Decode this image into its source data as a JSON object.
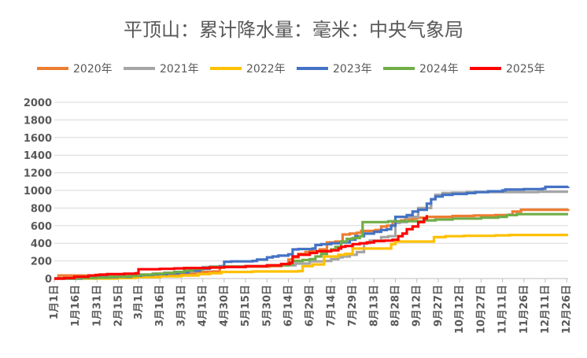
{
  "chart_data": {
    "type": "line",
    "title": "平顶山：累计降水量：毫米：中央气象局",
    "xlabel": "",
    "ylabel": "",
    "ylim": [
      0,
      2000
    ],
    "xlim": [
      1,
      361
    ],
    "yticks": [
      0,
      200,
      400,
      600,
      800,
      1000,
      1200,
      1400,
      1600,
      1800,
      2000
    ],
    "x_ticks": [
      {
        "label": "1月1日",
        "day": 1
      },
      {
        "label": "1月16日",
        "day": 16
      },
      {
        "label": "1月31日",
        "day": 31
      },
      {
        "label": "2月15日",
        "day": 46
      },
      {
        "label": "3月1日",
        "day": 60
      },
      {
        "label": "3月16日",
        "day": 75
      },
      {
        "label": "3月31日",
        "day": 90
      },
      {
        "label": "4月15日",
        "day": 105
      },
      {
        "label": "4月30日",
        "day": 120
      },
      {
        "label": "5月15日",
        "day": 135
      },
      {
        "label": "5月30日",
        "day": 150
      },
      {
        "label": "6月14日",
        "day": 165
      },
      {
        "label": "6月29日",
        "day": 180
      },
      {
        "label": "7月14日",
        "day": 195
      },
      {
        "label": "7月29日",
        "day": 210
      },
      {
        "label": "8月13日",
        "day": 225
      },
      {
        "label": "8月28日",
        "day": 240
      },
      {
        "label": "9月12日",
        "day": 255
      },
      {
        "label": "9月27日",
        "day": 270
      },
      {
        "label": "10月12日",
        "day": 285
      },
      {
        "label": "10月27日",
        "day": 300
      },
      {
        "label": "11月11日",
        "day": 315
      },
      {
        "label": "11月26日",
        "day": 330
      },
      {
        "label": "12月11日",
        "day": 345
      },
      {
        "label": "12月26日",
        "day": 360
      }
    ],
    "grid": true,
    "legend_position": "top",
    "series": [
      {
        "name": "2020年",
        "color": "#ED7D31",
        "points": [
          [
            1,
            0
          ],
          [
            4,
            35
          ],
          [
            25,
            35
          ],
          [
            32,
            40
          ],
          [
            45,
            42
          ],
          [
            60,
            42
          ],
          [
            75,
            42
          ],
          [
            80,
            45
          ],
          [
            90,
            45
          ],
          [
            95,
            55
          ],
          [
            100,
            75
          ],
          [
            112,
            80
          ],
          [
            117,
            130
          ],
          [
            125,
            135
          ],
          [
            152,
            140
          ],
          [
            160,
            150
          ],
          [
            165,
            215
          ],
          [
            168,
            240
          ],
          [
            172,
            280
          ],
          [
            177,
            300
          ],
          [
            180,
            310
          ],
          [
            187,
            330
          ],
          [
            192,
            410
          ],
          [
            198,
            420
          ],
          [
            203,
            500
          ],
          [
            208,
            510
          ],
          [
            213,
            520
          ],
          [
            216,
            540
          ],
          [
            226,
            550
          ],
          [
            230,
            590
          ],
          [
            234,
            600
          ],
          [
            238,
            650
          ],
          [
            244,
            660
          ],
          [
            247,
            670
          ],
          [
            252,
            680
          ],
          [
            255,
            690
          ],
          [
            262,
            700
          ],
          [
            270,
            700
          ],
          [
            280,
            710
          ],
          [
            295,
            715
          ],
          [
            310,
            720
          ],
          [
            320,
            725
          ],
          [
            322,
            760
          ],
          [
            328,
            780
          ],
          [
            345,
            780
          ],
          [
            361,
            790
          ]
        ]
      },
      {
        "name": "2021年",
        "color": "#A5A5A5",
        "points": [
          [
            1,
            0
          ],
          [
            18,
            0
          ],
          [
            25,
            5
          ],
          [
            35,
            10
          ],
          [
            45,
            15
          ],
          [
            53,
            25
          ],
          [
            58,
            45
          ],
          [
            72,
            55
          ],
          [
            80,
            60
          ],
          [
            88,
            70
          ],
          [
            95,
            80
          ],
          [
            100,
            100
          ],
          [
            105,
            130
          ],
          [
            110,
            135
          ],
          [
            135,
            140
          ],
          [
            150,
            150
          ],
          [
            170,
            170
          ],
          [
            180,
            195
          ],
          [
            190,
            200
          ],
          [
            195,
            220
          ],
          [
            200,
            240
          ],
          [
            203,
            250
          ],
          [
            208,
            270
          ],
          [
            213,
            300
          ],
          [
            218,
            400
          ],
          [
            222,
            430
          ],
          [
            230,
            470
          ],
          [
            235,
            480
          ],
          [
            240,
            630
          ],
          [
            243,
            640
          ],
          [
            248,
            700
          ],
          [
            256,
            800
          ],
          [
            265,
            900
          ],
          [
            268,
            950
          ],
          [
            273,
            970
          ],
          [
            280,
            975
          ],
          [
            290,
            980
          ],
          [
            340,
            985
          ],
          [
            361,
            985
          ]
        ]
      },
      {
        "name": "2022年",
        "color": "#FFC000",
        "points": [
          [
            1,
            0
          ],
          [
            15,
            0
          ],
          [
            30,
            0
          ],
          [
            45,
            5
          ],
          [
            58,
            15
          ],
          [
            75,
            25
          ],
          [
            90,
            35
          ],
          [
            102,
            50
          ],
          [
            110,
            60
          ],
          [
            118,
            75
          ],
          [
            130,
            75
          ],
          [
            140,
            80
          ],
          [
            158,
            80
          ],
          [
            172,
            85
          ],
          [
            175,
            140
          ],
          [
            182,
            160
          ],
          [
            190,
            250
          ],
          [
            200,
            270
          ],
          [
            205,
            280
          ],
          [
            210,
            340
          ],
          [
            225,
            340
          ],
          [
            234,
            340
          ],
          [
            237,
            390
          ],
          [
            240,
            420
          ],
          [
            248,
            420
          ],
          [
            265,
            420
          ],
          [
            267,
            470
          ],
          [
            275,
            480
          ],
          [
            288,
            485
          ],
          [
            310,
            490
          ],
          [
            320,
            495
          ],
          [
            361,
            495
          ]
        ]
      },
      {
        "name": "2023年",
        "color": "#4472C4",
        "points": [
          [
            1,
            0
          ],
          [
            20,
            10
          ],
          [
            30,
            15
          ],
          [
            45,
            20
          ],
          [
            55,
            35
          ],
          [
            62,
            40
          ],
          [
            70,
            50
          ],
          [
            80,
            60
          ],
          [
            88,
            70
          ],
          [
            95,
            90
          ],
          [
            103,
            110
          ],
          [
            110,
            130
          ],
          [
            117,
            140
          ],
          [
            120,
            190
          ],
          [
            125,
            195
          ],
          [
            140,
            200
          ],
          [
            143,
            215
          ],
          [
            150,
            240
          ],
          [
            154,
            250
          ],
          [
            158,
            260
          ],
          [
            165,
            275
          ],
          [
            168,
            330
          ],
          [
            172,
            335
          ],
          [
            182,
            340
          ],
          [
            184,
            380
          ],
          [
            188,
            390
          ],
          [
            195,
            400
          ],
          [
            202,
            410
          ],
          [
            208,
            440
          ],
          [
            212,
            480
          ],
          [
            218,
            510
          ],
          [
            225,
            530
          ],
          [
            230,
            550
          ],
          [
            234,
            560
          ],
          [
            237,
            600
          ],
          [
            240,
            700
          ],
          [
            248,
            720
          ],
          [
            252,
            760
          ],
          [
            256,
            780
          ],
          [
            262,
            850
          ],
          [
            265,
            900
          ],
          [
            268,
            930
          ],
          [
            273,
            950
          ],
          [
            280,
            960
          ],
          [
            290,
            970
          ],
          [
            296,
            980
          ],
          [
            305,
            990
          ],
          [
            315,
            1000
          ],
          [
            317,
            1010
          ],
          [
            330,
            1015
          ],
          [
            343,
            1020
          ],
          [
            345,
            1040
          ],
          [
            361,
            1045
          ]
        ]
      },
      {
        "name": "2024年",
        "color": "#70AD47",
        "points": [
          [
            1,
            0
          ],
          [
            8,
            0
          ],
          [
            16,
            5
          ],
          [
            30,
            10
          ],
          [
            40,
            20
          ],
          [
            50,
            25
          ],
          [
            55,
            30
          ],
          [
            60,
            45
          ],
          [
            70,
            55
          ],
          [
            78,
            65
          ],
          [
            85,
            75
          ],
          [
            92,
            90
          ],
          [
            98,
            110
          ],
          [
            105,
            120
          ],
          [
            110,
            130
          ],
          [
            120,
            135
          ],
          [
            135,
            140
          ],
          [
            150,
            150
          ],
          [
            165,
            160
          ],
          [
            168,
            200
          ],
          [
            175,
            210
          ],
          [
            180,
            220
          ],
          [
            184,
            250
          ],
          [
            188,
            280
          ],
          [
            192,
            310
          ],
          [
            195,
            330
          ],
          [
            198,
            360
          ],
          [
            202,
            420
          ],
          [
            206,
            450
          ],
          [
            210,
            460
          ],
          [
            215,
            480
          ],
          [
            217,
            640
          ],
          [
            235,
            650
          ],
          [
            260,
            660
          ],
          [
            268,
            670
          ],
          [
            280,
            680
          ],
          [
            300,
            690
          ],
          [
            312,
            700
          ],
          [
            318,
            720
          ],
          [
            325,
            730
          ],
          [
            361,
            730
          ]
        ]
      },
      {
        "name": "2025年",
        "color": "#FF0000",
        "points": [
          [
            1,
            0
          ],
          [
            8,
            5
          ],
          [
            15,
            20
          ],
          [
            25,
            35
          ],
          [
            30,
            40
          ],
          [
            33,
            45
          ],
          [
            38,
            50
          ],
          [
            50,
            55
          ],
          [
            58,
            60
          ],
          [
            60,
            105
          ],
          [
            75,
            110
          ],
          [
            85,
            115
          ],
          [
            92,
            120
          ],
          [
            102,
            120
          ],
          [
            110,
            125
          ],
          [
            120,
            130
          ],
          [
            135,
            140
          ],
          [
            150,
            150
          ],
          [
            160,
            165
          ],
          [
            166,
            180
          ],
          [
            168,
            250
          ],
          [
            172,
            270
          ],
          [
            180,
            290
          ],
          [
            185,
            310
          ],
          [
            195,
            320
          ],
          [
            200,
            340
          ],
          [
            202,
            360
          ],
          [
            205,
            370
          ],
          [
            210,
            390
          ],
          [
            215,
            400
          ],
          [
            220,
            410
          ],
          [
            225,
            425
          ],
          [
            232,
            430
          ],
          [
            238,
            440
          ],
          [
            242,
            480
          ],
          [
            245,
            510
          ],
          [
            248,
            560
          ],
          [
            252,
            590
          ],
          [
            256,
            640
          ],
          [
            260,
            680
          ],
          [
            262,
            720
          ]
        ]
      }
    ]
  }
}
